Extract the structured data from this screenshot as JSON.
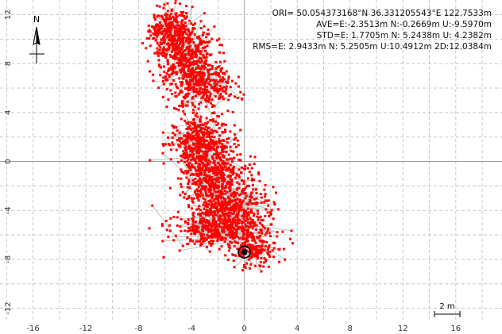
{
  "plot": {
    "x_ticks": [
      "-16",
      "-12",
      "-8",
      "-4",
      "0",
      "4",
      "8",
      "12",
      "16"
    ],
    "y_ticks": [
      "12",
      "8",
      "4",
      "0",
      "-4",
      "-8",
      "-12"
    ],
    "xlim": [
      -18.5,
      19.5
    ],
    "ylim": [
      -13,
      13.2
    ],
    "grid": true,
    "colors": {
      "solution": "#ff0000",
      "track": "#c0c0c0",
      "grid": "#c8c8c8",
      "axis": "#a0a0a0"
    }
  },
  "stats": {
    "ori": "ORI= 50.054373168°N   36.331205543°E 122.7533m",
    "ave": "AVE=E:-2.3513m N:-0.2669m U:-9.5970m",
    "std": "STD=E: 1.7705m N: 5.2438m U: 4.2382m",
    "rms": "RMS=E: 2.9433m N: 5.2505m U:10.4912m 2D:12.0384m"
  },
  "compass": {
    "label": "N",
    "icon": "north-arrow-icon"
  },
  "scale_bar": {
    "label": "2 m"
  },
  "marker": {
    "icon": "target-marker-icon",
    "x": 0,
    "y": -7.4
  },
  "chart_data": {
    "type": "scatter",
    "xlim": [
      -18.5,
      19.5
    ],
    "ylim": [
      -13,
      13.2
    ],
    "series": [
      {
        "clusters": [
          {
            "x": -5.6,
            "y": 10.8,
            "sx": 0.8,
            "sy": 0.9,
            "n": 260
          },
          {
            "x": -4.5,
            "y": 8.8,
            "sx": 1.1,
            "sy": 1.1,
            "n": 380
          },
          {
            "x": -3.3,
            "y": 6.2,
            "sx": 1.2,
            "sy": 1.0,
            "n": 360
          },
          {
            "x": -3.5,
            "y": 1.6,
            "sx": 1.1,
            "sy": 1.0,
            "n": 380
          },
          {
            "x": -2.4,
            "y": -0.8,
            "sx": 1.2,
            "sy": 1.2,
            "n": 420
          },
          {
            "x": -1.3,
            "y": -3.6,
            "sx": 1.5,
            "sy": 1.2,
            "n": 480
          },
          {
            "x": -1.8,
            "y": -5.6,
            "sx": 1.9,
            "sy": 0.8,
            "n": 400
          },
          {
            "x": 0.8,
            "y": -7.4,
            "sx": 0.8,
            "sy": 0.7,
            "n": 150
          }
        ]
      }
    ]
  }
}
